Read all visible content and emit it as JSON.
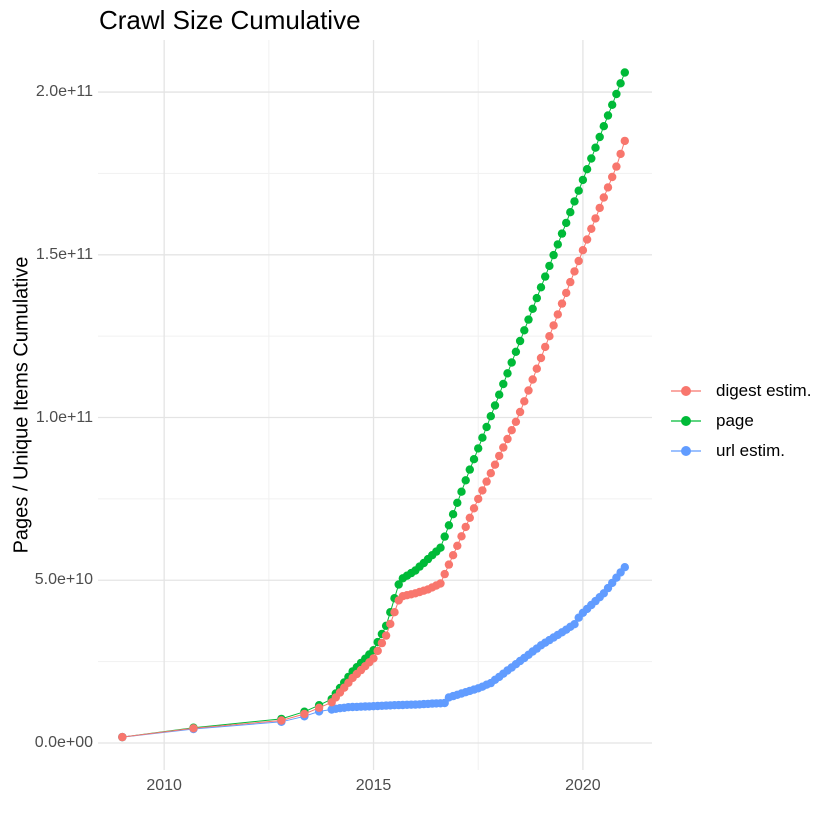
{
  "title": "Crawl Size Cumulative",
  "chart_data": {
    "type": "scatter",
    "title": "Crawl Size Cumulative",
    "xlabel": "",
    "ylabel": "Pages / Unique Items Cumulative",
    "legend_position": "right",
    "grid": true,
    "background": "#FFFFFF",
    "colors": {
      "major_grid": "#E4E4E4",
      "minor_grid": "#F1F1F1",
      "tick_text": "#4D4D4D"
    },
    "xlim": [
      2008.42,
      2021.65
    ],
    "ylim_e9": [
      -8.3,
      216
    ],
    "x_ticks": {
      "values": [
        2010,
        2015,
        2020
      ],
      "labels": [
        "2010",
        "2015",
        "2020"
      ]
    },
    "x_minor": [
      2012.5,
      2017.5
    ],
    "y_ticks": {
      "values_e9": [
        0,
        50,
        100,
        150,
        200
      ],
      "labels": [
        "0.0e+00",
        "5.0e+10",
        "1.0e+11",
        "1.5e+11",
        "2.0e+11"
      ]
    },
    "y_minor_e9": [
      25,
      75,
      125,
      175
    ],
    "value_unit": "1e9 pages (values below are in billions)",
    "series": [
      {
        "name": "digest estim.",
        "color": "#F8766D",
        "z": 3,
        "points": [
          [
            2009.0,
            1.8
          ],
          [
            2010.7,
            4.5
          ],
          [
            2012.8,
            6.9
          ],
          [
            2013.35,
            8.9
          ],
          [
            2013.7,
            10.8
          ],
          [
            2014.0,
            12.5
          ],
          [
            2014.1,
            14
          ],
          [
            2014.2,
            15.5
          ],
          [
            2014.3,
            17
          ],
          [
            2014.4,
            18.5
          ],
          [
            2014.5,
            20
          ],
          [
            2014.6,
            21.2
          ],
          [
            2014.7,
            22.4
          ],
          [
            2014.8,
            23.6
          ],
          [
            2014.9,
            24.8
          ],
          [
            2015.0,
            26
          ],
          [
            2015.1,
            28.3
          ],
          [
            2015.2,
            30.7
          ],
          [
            2015.3,
            33
          ],
          [
            2015.4,
            36.6
          ],
          [
            2015.5,
            40.2
          ],
          [
            2015.6,
            43.8
          ],
          [
            2015.7,
            45.1
          ],
          [
            2015.8,
            45.4
          ],
          [
            2015.9,
            45.7
          ],
          [
            2016.0,
            46
          ],
          [
            2016.1,
            46.4
          ],
          [
            2016.2,
            46.8
          ],
          [
            2016.3,
            47.2
          ],
          [
            2016.4,
            47.8
          ],
          [
            2016.5,
            48.4
          ],
          [
            2016.6,
            49
          ],
          [
            2016.7,
            51.9
          ],
          [
            2016.8,
            54.8
          ],
          [
            2016.9,
            57.7
          ],
          [
            2017.0,
            60.6
          ],
          [
            2017.1,
            63.5
          ],
          [
            2017.2,
            66.4
          ],
          [
            2017.3,
            69.2
          ],
          [
            2017.4,
            72.1
          ],
          [
            2017.5,
            75
          ],
          [
            2017.6,
            77.6
          ],
          [
            2017.7,
            80.3
          ],
          [
            2017.8,
            82.9
          ],
          [
            2017.9,
            85.5
          ],
          [
            2018.0,
            88.2
          ],
          [
            2018.1,
            90.8
          ],
          [
            2018.2,
            93.4
          ],
          [
            2018.3,
            96.1
          ],
          [
            2018.4,
            98.7
          ],
          [
            2018.5,
            101.7
          ],
          [
            2018.6,
            105
          ],
          [
            2018.7,
            108.3
          ],
          [
            2018.8,
            111.7
          ],
          [
            2018.9,
            115
          ],
          [
            2019.0,
            118.3
          ],
          [
            2019.1,
            121.7
          ],
          [
            2019.2,
            125
          ],
          [
            2019.3,
            128.3
          ],
          [
            2019.4,
            131.7
          ],
          [
            2019.5,
            135
          ],
          [
            2019.6,
            138.3
          ],
          [
            2019.7,
            141.6
          ],
          [
            2019.8,
            144.9
          ],
          [
            2019.9,
            148.1
          ],
          [
            2020.0,
            151.4
          ],
          [
            2020.1,
            154.7
          ],
          [
            2020.2,
            158
          ],
          [
            2020.3,
            161.2
          ],
          [
            2020.4,
            164.4
          ],
          [
            2020.5,
            167.6
          ],
          [
            2020.6,
            170.7
          ],
          [
            2020.7,
            173.9
          ],
          [
            2020.8,
            177.1
          ],
          [
            2020.9,
            181
          ],
          [
            2021.0,
            185
          ]
        ]
      },
      {
        "name": "page",
        "color": "#00BA38",
        "z": 1,
        "points": [
          [
            2009.0,
            1.8
          ],
          [
            2010.7,
            4.7
          ],
          [
            2012.8,
            7.4
          ],
          [
            2013.35,
            9.6
          ],
          [
            2013.7,
            11.6
          ],
          [
            2014.0,
            13.5
          ],
          [
            2014.1,
            15.2
          ],
          [
            2014.2,
            16.9
          ],
          [
            2014.3,
            18.6
          ],
          [
            2014.4,
            20.3
          ],
          [
            2014.5,
            22
          ],
          [
            2014.6,
            23.3
          ],
          [
            2014.7,
            24.6
          ],
          [
            2014.8,
            25.9
          ],
          [
            2014.9,
            27.2
          ],
          [
            2015.0,
            28.5
          ],
          [
            2015.1,
            31
          ],
          [
            2015.2,
            33.5
          ],
          [
            2015.3,
            36
          ],
          [
            2015.4,
            40.2
          ],
          [
            2015.5,
            44.5
          ],
          [
            2015.6,
            48.7
          ],
          [
            2015.7,
            50.6
          ],
          [
            2015.8,
            51.4
          ],
          [
            2015.9,
            52.2
          ],
          [
            2016.0,
            53
          ],
          [
            2016.1,
            54.2
          ],
          [
            2016.2,
            55.3
          ],
          [
            2016.3,
            56.5
          ],
          [
            2016.4,
            57.7
          ],
          [
            2016.5,
            58.8
          ],
          [
            2016.6,
            60
          ],
          [
            2016.7,
            63.4
          ],
          [
            2016.8,
            66.9
          ],
          [
            2016.9,
            70.3
          ],
          [
            2017.0,
            73.8
          ],
          [
            2017.1,
            77.2
          ],
          [
            2017.2,
            80.7
          ],
          [
            2017.3,
            84
          ],
          [
            2017.4,
            87.2
          ],
          [
            2017.5,
            90.5
          ],
          [
            2017.6,
            93.8
          ],
          [
            2017.7,
            97.1
          ],
          [
            2017.8,
            100.4
          ],
          [
            2017.9,
            103.7
          ],
          [
            2018.0,
            107
          ],
          [
            2018.1,
            110.3
          ],
          [
            2018.2,
            113.6
          ],
          [
            2018.3,
            116.9
          ],
          [
            2018.4,
            120.2
          ],
          [
            2018.5,
            123.5
          ],
          [
            2018.6,
            126.8
          ],
          [
            2018.7,
            130.1
          ],
          [
            2018.8,
            133.4
          ],
          [
            2018.9,
            136.7
          ],
          [
            2019.0,
            140
          ],
          [
            2019.1,
            143.3
          ],
          [
            2019.2,
            146.6
          ],
          [
            2019.3,
            149.9
          ],
          [
            2019.4,
            153.2
          ],
          [
            2019.5,
            156.5
          ],
          [
            2019.6,
            159.8
          ],
          [
            2019.7,
            163.1
          ],
          [
            2019.8,
            166.4
          ],
          [
            2019.9,
            169.7
          ],
          [
            2020.0,
            173
          ],
          [
            2020.1,
            176.3
          ],
          [
            2020.2,
            179.6
          ],
          [
            2020.3,
            182.9
          ],
          [
            2020.4,
            186.2
          ],
          [
            2020.5,
            189.5
          ],
          [
            2020.6,
            192.8
          ],
          [
            2020.7,
            196.1
          ],
          [
            2020.8,
            199.4
          ],
          [
            2020.9,
            202.7
          ],
          [
            2021.0,
            206
          ]
        ]
      },
      {
        "name": "url estim.",
        "color": "#619CFF",
        "z": 2,
        "points": [
          [
            2009.0,
            1.8
          ],
          [
            2010.7,
            4.3
          ],
          [
            2012.8,
            6.5
          ],
          [
            2013.35,
            8.2
          ],
          [
            2013.7,
            9.7
          ],
          [
            2014.0,
            10.3
          ],
          [
            2014.1,
            10.5
          ],
          [
            2014.2,
            10.7
          ],
          [
            2014.3,
            10.8
          ],
          [
            2014.4,
            11
          ],
          [
            2014.5,
            11.05
          ],
          [
            2014.6,
            11.1
          ],
          [
            2014.7,
            11.15
          ],
          [
            2014.8,
            11.2
          ],
          [
            2014.9,
            11.25
          ],
          [
            2015.0,
            11.3
          ],
          [
            2015.1,
            11.36
          ],
          [
            2015.2,
            11.42
          ],
          [
            2015.3,
            11.48
          ],
          [
            2015.4,
            11.54
          ],
          [
            2015.5,
            11.6
          ],
          [
            2015.6,
            11.64
          ],
          [
            2015.7,
            11.68
          ],
          [
            2015.8,
            11.72
          ],
          [
            2015.9,
            11.76
          ],
          [
            2016.0,
            11.8
          ],
          [
            2016.1,
            11.87
          ],
          [
            2016.2,
            11.94
          ],
          [
            2016.3,
            12
          ],
          [
            2016.4,
            12.1
          ],
          [
            2016.5,
            12.15
          ],
          [
            2016.6,
            12.2
          ],
          [
            2016.7,
            12.3
          ],
          [
            2016.8,
            14
          ],
          [
            2016.9,
            14.4
          ],
          [
            2017.0,
            14.8
          ],
          [
            2017.1,
            15.2
          ],
          [
            2017.2,
            15.6
          ],
          [
            2017.3,
            16
          ],
          [
            2017.4,
            16.4
          ],
          [
            2017.5,
            16.8
          ],
          [
            2017.6,
            17.3
          ],
          [
            2017.7,
            17.9
          ],
          [
            2017.8,
            18.4
          ],
          [
            2017.9,
            19.4
          ],
          [
            2018.0,
            20.3
          ],
          [
            2018.1,
            21.3
          ],
          [
            2018.2,
            22.3
          ],
          [
            2018.3,
            23.2
          ],
          [
            2018.4,
            24.2
          ],
          [
            2018.5,
            25.2
          ],
          [
            2018.6,
            26.1
          ],
          [
            2018.7,
            27.1
          ],
          [
            2018.8,
            28.1
          ],
          [
            2018.9,
            29
          ],
          [
            2019.0,
            30
          ],
          [
            2019.1,
            30.8
          ],
          [
            2019.2,
            31.6
          ],
          [
            2019.3,
            32.4
          ],
          [
            2019.4,
            33.2
          ],
          [
            2019.5,
            34
          ],
          [
            2019.6,
            34.8
          ],
          [
            2019.7,
            35.7
          ],
          [
            2019.8,
            36.5
          ],
          [
            2019.9,
            38.5
          ],
          [
            2020.0,
            40
          ],
          [
            2020.1,
            41.2
          ],
          [
            2020.2,
            42.4
          ],
          [
            2020.3,
            43.6
          ],
          [
            2020.4,
            44.8
          ],
          [
            2020.5,
            46
          ],
          [
            2020.6,
            47.6
          ],
          [
            2020.7,
            49.2
          ],
          [
            2020.8,
            50.8
          ],
          [
            2020.9,
            52.4
          ],
          [
            2021.0,
            54
          ]
        ]
      }
    ]
  }
}
